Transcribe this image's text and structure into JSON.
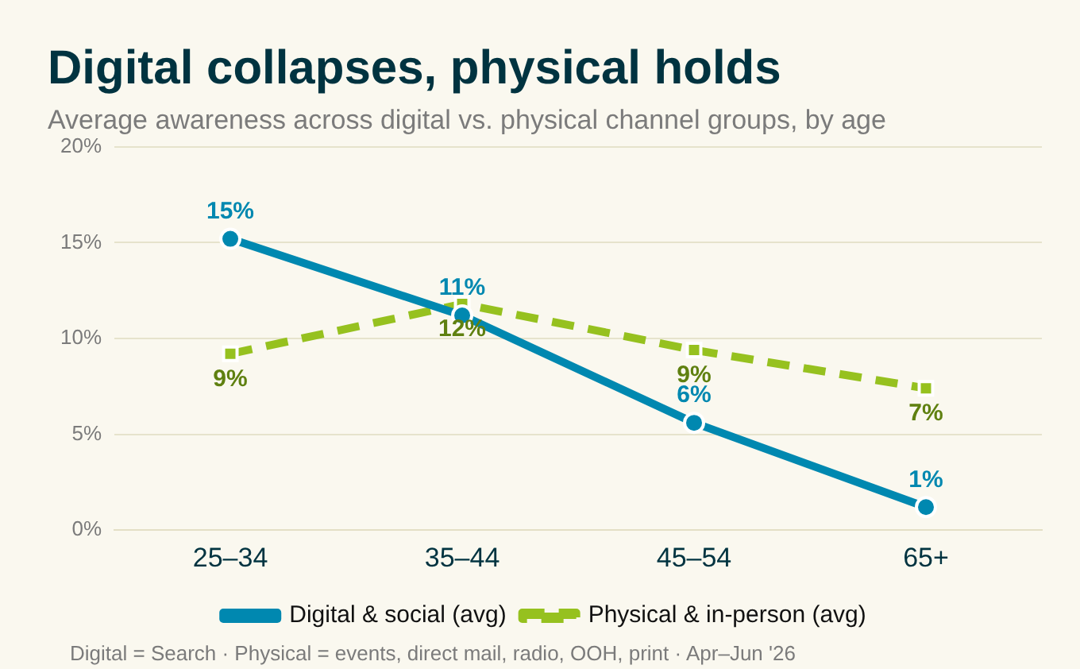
{
  "chart_data": {
    "type": "line",
    "title": "Digital collapses, physical holds",
    "subtitle": "Average awareness across digital vs. physical channel groups, by age",
    "categories": [
      "25–34",
      "35–44",
      "45–54",
      "65+"
    ],
    "series": [
      {
        "name": "Digital & social (avg)",
        "color": "#0088b0",
        "values": [
          15.2,
          11.2,
          5.6,
          1.2
        ],
        "value_labels": [
          "15%",
          "11%",
          "6%",
          "1%"
        ],
        "marker": "circle",
        "line_style": "solid"
      },
      {
        "name": "Physical & in-person (avg)",
        "color": "#96c11f",
        "values": [
          9.2,
          11.8,
          9.4,
          7.4
        ],
        "value_labels": [
          "9%",
          "12%",
          "9%",
          "7%"
        ],
        "marker": "square",
        "line_style": "dashed"
      }
    ],
    "ylim": [
      0,
      20
    ],
    "yticks": [
      {
        "value": 0,
        "label": "0%"
      },
      {
        "value": 5,
        "label": "5%"
      },
      {
        "value": 10,
        "label": "10%"
      },
      {
        "value": 15,
        "label": "15%"
      },
      {
        "value": 20,
        "label": "20%"
      }
    ],
    "grid": "y",
    "legend": "bottom",
    "annotations": [
      "Digital = Search · Physical = events, direct mail, radio, OOH, print · Apr–Jun '26"
    ]
  }
}
